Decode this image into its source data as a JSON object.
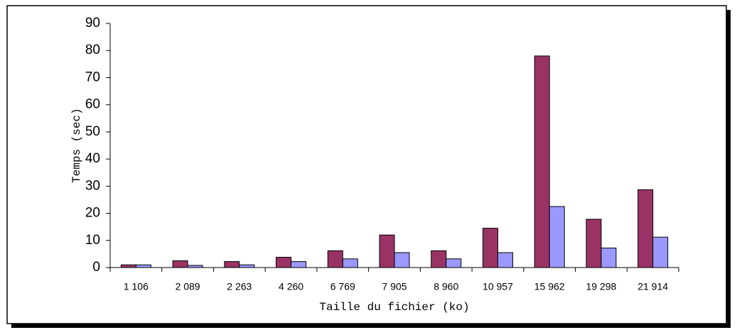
{
  "chart_data": {
    "type": "bar",
    "x_label": "Taille du fichier (ko)",
    "y_label": "Temps (sec)",
    "categories": [
      "1 106",
      "2 089",
      "2 263",
      "4 260",
      "6 769",
      "7 905",
      "8 960",
      "10 957",
      "15 962",
      "19 298",
      "21 914"
    ],
    "series": [
      {
        "color": "#993366",
        "values": [
          1,
          2.5,
          2.2,
          3.8,
          6.2,
          12,
          6.2,
          14.5,
          78,
          17.8,
          28.7
        ]
      },
      {
        "color": "#9999ff",
        "values": [
          1,
          0.8,
          1,
          2.2,
          3.2,
          5.5,
          3.2,
          5.5,
          22.5,
          7.2,
          11.2
        ]
      }
    ],
    "ylim": [
      0,
      90
    ],
    "yticks": [
      0,
      10,
      20,
      30,
      40,
      50,
      60,
      70,
      80,
      90
    ]
  }
}
